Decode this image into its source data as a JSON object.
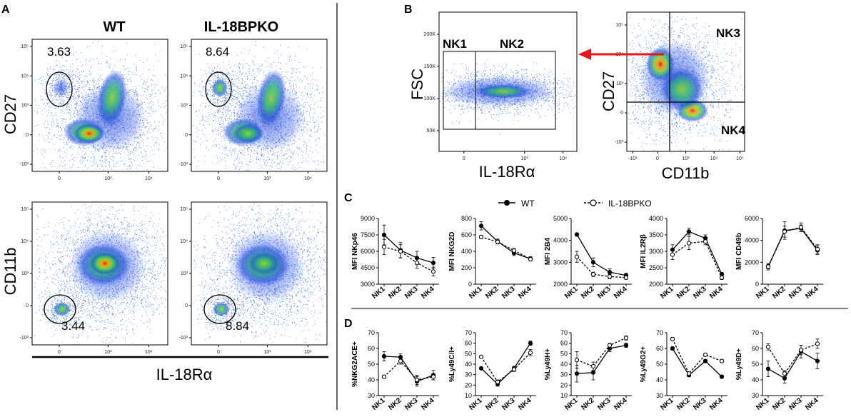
{
  "panels": {
    "A": "A",
    "B": "B",
    "C": "C",
    "D": "D"
  },
  "panelA": {
    "col_wt": "WT",
    "col_ko": "IL-18BPKO",
    "ylabel_top": "CD27",
    "ylabel_bottom": "CD11b",
    "xlabel": "IL-18Rα",
    "pct_top_wt": "3.63",
    "pct_top_ko": "8.64",
    "pct_bottom_wt": "3.44",
    "pct_bottom_ko": "8.84",
    "yticks": [
      "10⁵",
      "10⁴",
      "10³",
      "0",
      "-10³"
    ],
    "xticks": [
      "0",
      "10³",
      "10⁴"
    ]
  },
  "panelB": {
    "left_ylabel": "FSC",
    "left_xlabel": "IL-18Rα",
    "left_yticks": [
      "200K",
      "150K",
      "100K",
      "50K"
    ],
    "left_xticks": [
      "0",
      "10³",
      "10⁴"
    ],
    "gate_nk1": "NK1",
    "gate_nk2": "NK2",
    "right_ylabel": "CD27",
    "right_xlabel": "CD11b",
    "right_yticks": [
      "10⁵",
      "10⁴",
      "10³",
      "0",
      "-10³"
    ],
    "right_xticks": [
      "-10³",
      "0",
      "10³",
      "10⁴",
      "10⁵"
    ],
    "gate_nk3": "NK3",
    "gate_nk4": "NK4",
    "arrow_color": "#e8141b"
  },
  "legend": {
    "wt": "WT",
    "ko": "IL-18BPKO"
  },
  "categories": [
    "NK1",
    "NK2",
    "NK3",
    "NK4"
  ],
  "chart_data": [
    {
      "type": "line",
      "panel": "C",
      "ylabel": "MFI NKp46",
      "ylim": [
        3000,
        9000
      ],
      "yticks": [
        3000,
        4500,
        6000,
        7500,
        9000
      ],
      "series": [
        {
          "name": "WT",
          "values": [
            7500,
            6100,
            5400,
            4950
          ],
          "err": [
            900,
            700,
            600,
            500
          ]
        },
        {
          "name": "IL-18BPKO",
          "values": [
            6400,
            6000,
            4950,
            4150
          ],
          "err": [
            700,
            600,
            500,
            400
          ]
        }
      ]
    },
    {
      "type": "line",
      "panel": "C",
      "ylabel": "MFI NKG2D",
      "ylim": [
        0,
        800
      ],
      "yticks": [
        0,
        200,
        400,
        600,
        800
      ],
      "series": [
        {
          "name": "WT",
          "values": [
            710,
            520,
            380,
            310
          ],
          "err": [
            50,
            30,
            30,
            25
          ]
        },
        {
          "name": "IL-18BPKO",
          "values": [
            575,
            515,
            410,
            305
          ],
          "err": [
            20,
            25,
            25,
            20
          ]
        }
      ]
    },
    {
      "type": "line",
      "panel": "C",
      "ylabel": "MFI 2B4",
      "ylim": [
        2000,
        5000
      ],
      "yticks": [
        2000,
        3000,
        4000,
        5000
      ],
      "series": [
        {
          "name": "WT",
          "values": [
            4270,
            3000,
            2550,
            2400
          ],
          "err": [
            70,
            200,
            150,
            100
          ]
        },
        {
          "name": "IL-18BPKO",
          "values": [
            3250,
            2450,
            2350,
            2300
          ],
          "err": [
            250,
            100,
            100,
            80
          ]
        }
      ]
    },
    {
      "type": "line",
      "panel": "C",
      "ylabel": "MFI IL2Rβ",
      "ylim": [
        2000,
        4000
      ],
      "yticks": [
        2000,
        2500,
        3000,
        3500,
        4000
      ],
      "series": [
        {
          "name": "WT",
          "values": [
            3050,
            3600,
            3400,
            2300
          ],
          "err": [
            150,
            100,
            100,
            60
          ]
        },
        {
          "name": "IL-18BPKO",
          "values": [
            2900,
            3250,
            3300,
            2200
          ],
          "err": [
            150,
            200,
            100,
            60
          ]
        }
      ]
    },
    {
      "type": "line",
      "panel": "C",
      "ylabel": "MFI CD49b",
      "ylim": [
        0,
        6000
      ],
      "yticks": [
        0,
        2000,
        4000,
        6000
      ],
      "series": [
        {
          "name": "WT",
          "values": [
            1600,
            4900,
            5100,
            3100
          ],
          "err": [
            300,
            800,
            300,
            400
          ]
        },
        {
          "name": "IL-18BPKO",
          "values": [
            1600,
            4800,
            5200,
            3200
          ],
          "err": [
            200,
            500,
            400,
            400
          ]
        }
      ]
    },
    {
      "type": "line",
      "panel": "D",
      "ylabel": "%NKG2ACE+",
      "ylim": [
        30,
        70
      ],
      "yticks": [
        30,
        40,
        50,
        60,
        70
      ],
      "series": [
        {
          "name": "WT",
          "values": [
            55,
            54.5,
            39,
            43
          ],
          "err": [
            3,
            2,
            3,
            3
          ]
        },
        {
          "name": "IL-18BPKO",
          "values": [
            42,
            52,
            40,
            42
          ],
          "err": [
            1,
            2,
            3,
            2
          ]
        }
      ]
    },
    {
      "type": "line",
      "panel": "D",
      "ylabel": "%Ly49C/I+",
      "ylim": [
        10,
        70
      ],
      "yticks": [
        10,
        20,
        30,
        40,
        50,
        60,
        70
      ],
      "series": [
        {
          "name": "WT",
          "values": [
            36,
            21,
            36,
            60
          ],
          "err": [
            1,
            2,
            2,
            2
          ]
        },
        {
          "name": "IL-18BPKO",
          "values": [
            47,
            23,
            35,
            51
          ],
          "err": [
            1,
            2,
            2,
            3
          ]
        }
      ]
    },
    {
      "type": "line",
      "panel": "D",
      "ylabel": "%Ly49H+",
      "ylim": [
        10,
        70
      ],
      "yticks": [
        10,
        20,
        30,
        40,
        50,
        60,
        70
      ],
      "series": [
        {
          "name": "WT",
          "values": [
            31,
            32,
            55,
            58
          ],
          "err": [
            8,
            7,
            3,
            2
          ]
        },
        {
          "name": "IL-18BPKO",
          "values": [
            44,
            38,
            58,
            65
          ],
          "err": [
            8,
            4,
            2,
            2
          ]
        }
      ]
    },
    {
      "type": "line",
      "panel": "D",
      "ylabel": "%Ly49G2+",
      "ylim": [
        30,
        70
      ],
      "yticks": [
        30,
        40,
        50,
        60,
        70
      ],
      "series": [
        {
          "name": "WT",
          "values": [
            60,
            43,
            52,
            42
          ],
          "err": [
            1,
            1,
            1,
            1
          ]
        },
        {
          "name": "IL-18BPKO",
          "values": [
            66,
            44,
            56,
            52
          ],
          "err": [
            1,
            1,
            1,
            1
          ]
        }
      ]
    },
    {
      "type": "line",
      "panel": "D",
      "ylabel": "%Ly49D+",
      "ylim": [
        30,
        70
      ],
      "yticks": [
        30,
        40,
        50,
        60,
        70
      ],
      "series": [
        {
          "name": "WT",
          "values": [
            47,
            41,
            58,
            52
          ],
          "err": [
            5,
            3,
            4,
            5
          ]
        },
        {
          "name": "IL-18BPKO",
          "values": [
            61,
            44,
            59,
            63
          ],
          "err": [
            2,
            2,
            3,
            3
          ]
        }
      ]
    }
  ]
}
